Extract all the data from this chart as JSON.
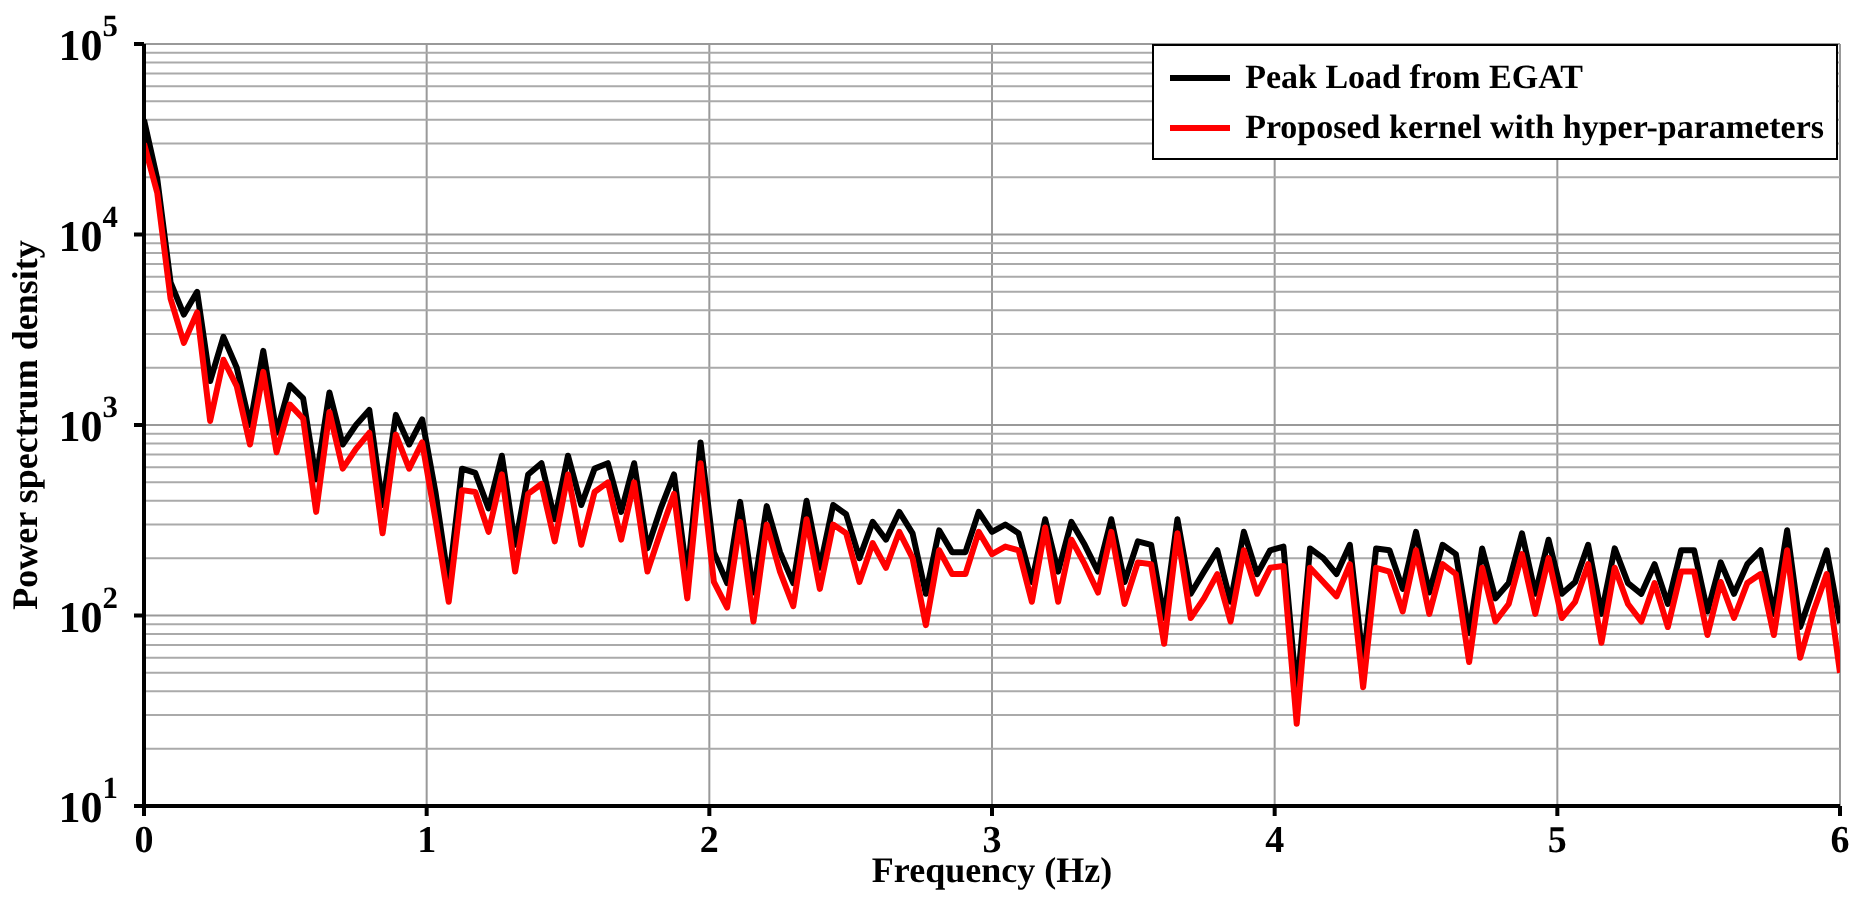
{
  "chart_data": {
    "type": "line",
    "xlabel": "Frequency (Hz)",
    "ylabel": "Power spectrum density",
    "x": [
      0,
      0.047,
      0.094,
      0.141,
      0.188,
      0.234,
      0.281,
      0.328,
      0.375,
      0.422,
      0.469,
      0.516,
      0.563,
      0.609,
      0.656,
      0.703,
      0.75,
      0.797,
      0.844,
      0.891,
      0.938,
      0.984,
      1.031,
      1.078,
      1.125,
      1.172,
      1.219,
      1.266,
      1.313,
      1.359,
      1.406,
      1.453,
      1.5,
      1.547,
      1.594,
      1.641,
      1.688,
      1.734,
      1.781,
      1.828,
      1.875,
      1.922,
      1.969,
      2.016,
      2.063,
      2.109,
      2.156,
      2.203,
      2.25,
      2.297,
      2.344,
      2.391,
      2.438,
      2.484,
      2.531,
      2.578,
      2.625,
      2.672,
      2.719,
      2.766,
      2.813,
      2.859,
      2.906,
      2.953,
      3,
      3.047,
      3.094,
      3.141,
      3.188,
      3.234,
      3.281,
      3.328,
      3.375,
      3.422,
      3.469,
      3.516,
      3.563,
      3.609,
      3.656,
      3.703,
      3.75,
      3.797,
      3.844,
      3.891,
      3.938,
      3.984,
      4.031,
      4.078,
      4.125,
      4.172,
      4.219,
      4.266,
      4.313,
      4.359,
      4.406,
      4.453,
      4.5,
      4.547,
      4.594,
      4.641,
      4.688,
      4.734,
      4.781,
      4.828,
      4.875,
      4.922,
      4.969,
      5.016,
      5.063,
      5.109,
      5.156,
      5.203,
      5.25,
      5.297,
      5.344,
      5.391,
      5.438,
      5.484,
      5.531,
      5.578,
      5.625,
      5.672,
      5.719,
      5.766,
      5.813,
      5.859,
      5.906,
      5.953,
      6
    ],
    "series": [
      {
        "name": "Peak Load from EGAT",
        "color": "#000000",
        "values": [
          40000,
          19500,
          5600,
          3800,
          5000,
          1700,
          2900,
          2000,
          1000,
          2450,
          910,
          1620,
          1380,
          520,
          1480,
          790,
          1000,
          1200,
          380,
          1130,
          790,
          1070,
          445,
          148,
          590,
          560,
          365,
          690,
          235,
          550,
          630,
          320,
          690,
          380,
          590,
          630,
          350,
          630,
          225,
          365,
          550,
          158,
          810,
          215,
          148,
          395,
          132,
          375,
          215,
          148,
          400,
          178,
          380,
          340,
          200,
          310,
          250,
          350,
          270,
          130,
          280,
          215,
          215,
          350,
          275,
          300,
          270,
          150,
          320,
          170,
          310,
          235,
          170,
          320,
          150,
          245,
          235,
          97,
          320,
          130,
          170,
          220,
          118,
          275,
          165,
          220,
          230,
          39,
          225,
          200,
          165,
          235,
          57,
          225,
          220,
          138,
          275,
          132,
          235,
          210,
          81,
          225,
          123,
          148,
          270,
          130,
          250,
          130,
          150,
          235,
          102,
          225,
          148,
          130,
          186,
          115,
          220,
          220,
          105,
          190,
          130,
          186,
          220,
          102,
          280,
          87,
          138,
          220,
          91
        ]
      },
      {
        "name": "Proposed kernel with hyper-parameters",
        "color": "#ff0000",
        "values": [
          30000,
          16500,
          4600,
          2700,
          3900,
          1050,
          2200,
          1600,
          790,
          1900,
          720,
          1280,
          1080,
          350,
          1170,
          590,
          750,
          910,
          270,
          890,
          590,
          810,
          320,
          118,
          455,
          445,
          275,
          550,
          170,
          435,
          490,
          245,
          550,
          235,
          445,
          500,
          250,
          500,
          170,
          275,
          435,
          123,
          630,
          150,
          110,
          310,
          93,
          300,
          170,
          112,
          320,
          138,
          300,
          270,
          150,
          240,
          178,
          275,
          200,
          89,
          220,
          165,
          165,
          275,
          210,
          230,
          220,
          118,
          290,
          118,
          250,
          186,
          132,
          275,
          115,
          190,
          186,
          71,
          270,
          97,
          123,
          165,
          93,
          220,
          130,
          178,
          182,
          27,
          178,
          150,
          126,
          186,
          42,
          178,
          170,
          105,
          220,
          102,
          186,
          165,
          57,
          178,
          93,
          115,
          210,
          102,
          200,
          97,
          118,
          186,
          72,
          178,
          115,
          93,
          148,
          87,
          170,
          170,
          79,
          150,
          97,
          148,
          165,
          79,
          220,
          60,
          105,
          165,
          50
        ]
      }
    ],
    "xlim": [
      0,
      6
    ],
    "xticks": [
      0,
      1,
      2,
      3,
      4,
      5,
      6
    ],
    "ylim": [
      10,
      100000
    ],
    "yticks": [
      {
        "value": 10,
        "label": "10$^{1}$"
      },
      {
        "value": 100,
        "label": "10$^{2}$"
      },
      {
        "value": 1000,
        "label": "10$^{3}$"
      },
      {
        "value": 10000,
        "label": "10$^{4}$"
      },
      {
        "value": 100000,
        "label": "10$^{5}$"
      }
    ],
    "log": true,
    "grid": true,
    "legend": "top right",
    "marker": "none",
    "line_style": "solid"
  }
}
